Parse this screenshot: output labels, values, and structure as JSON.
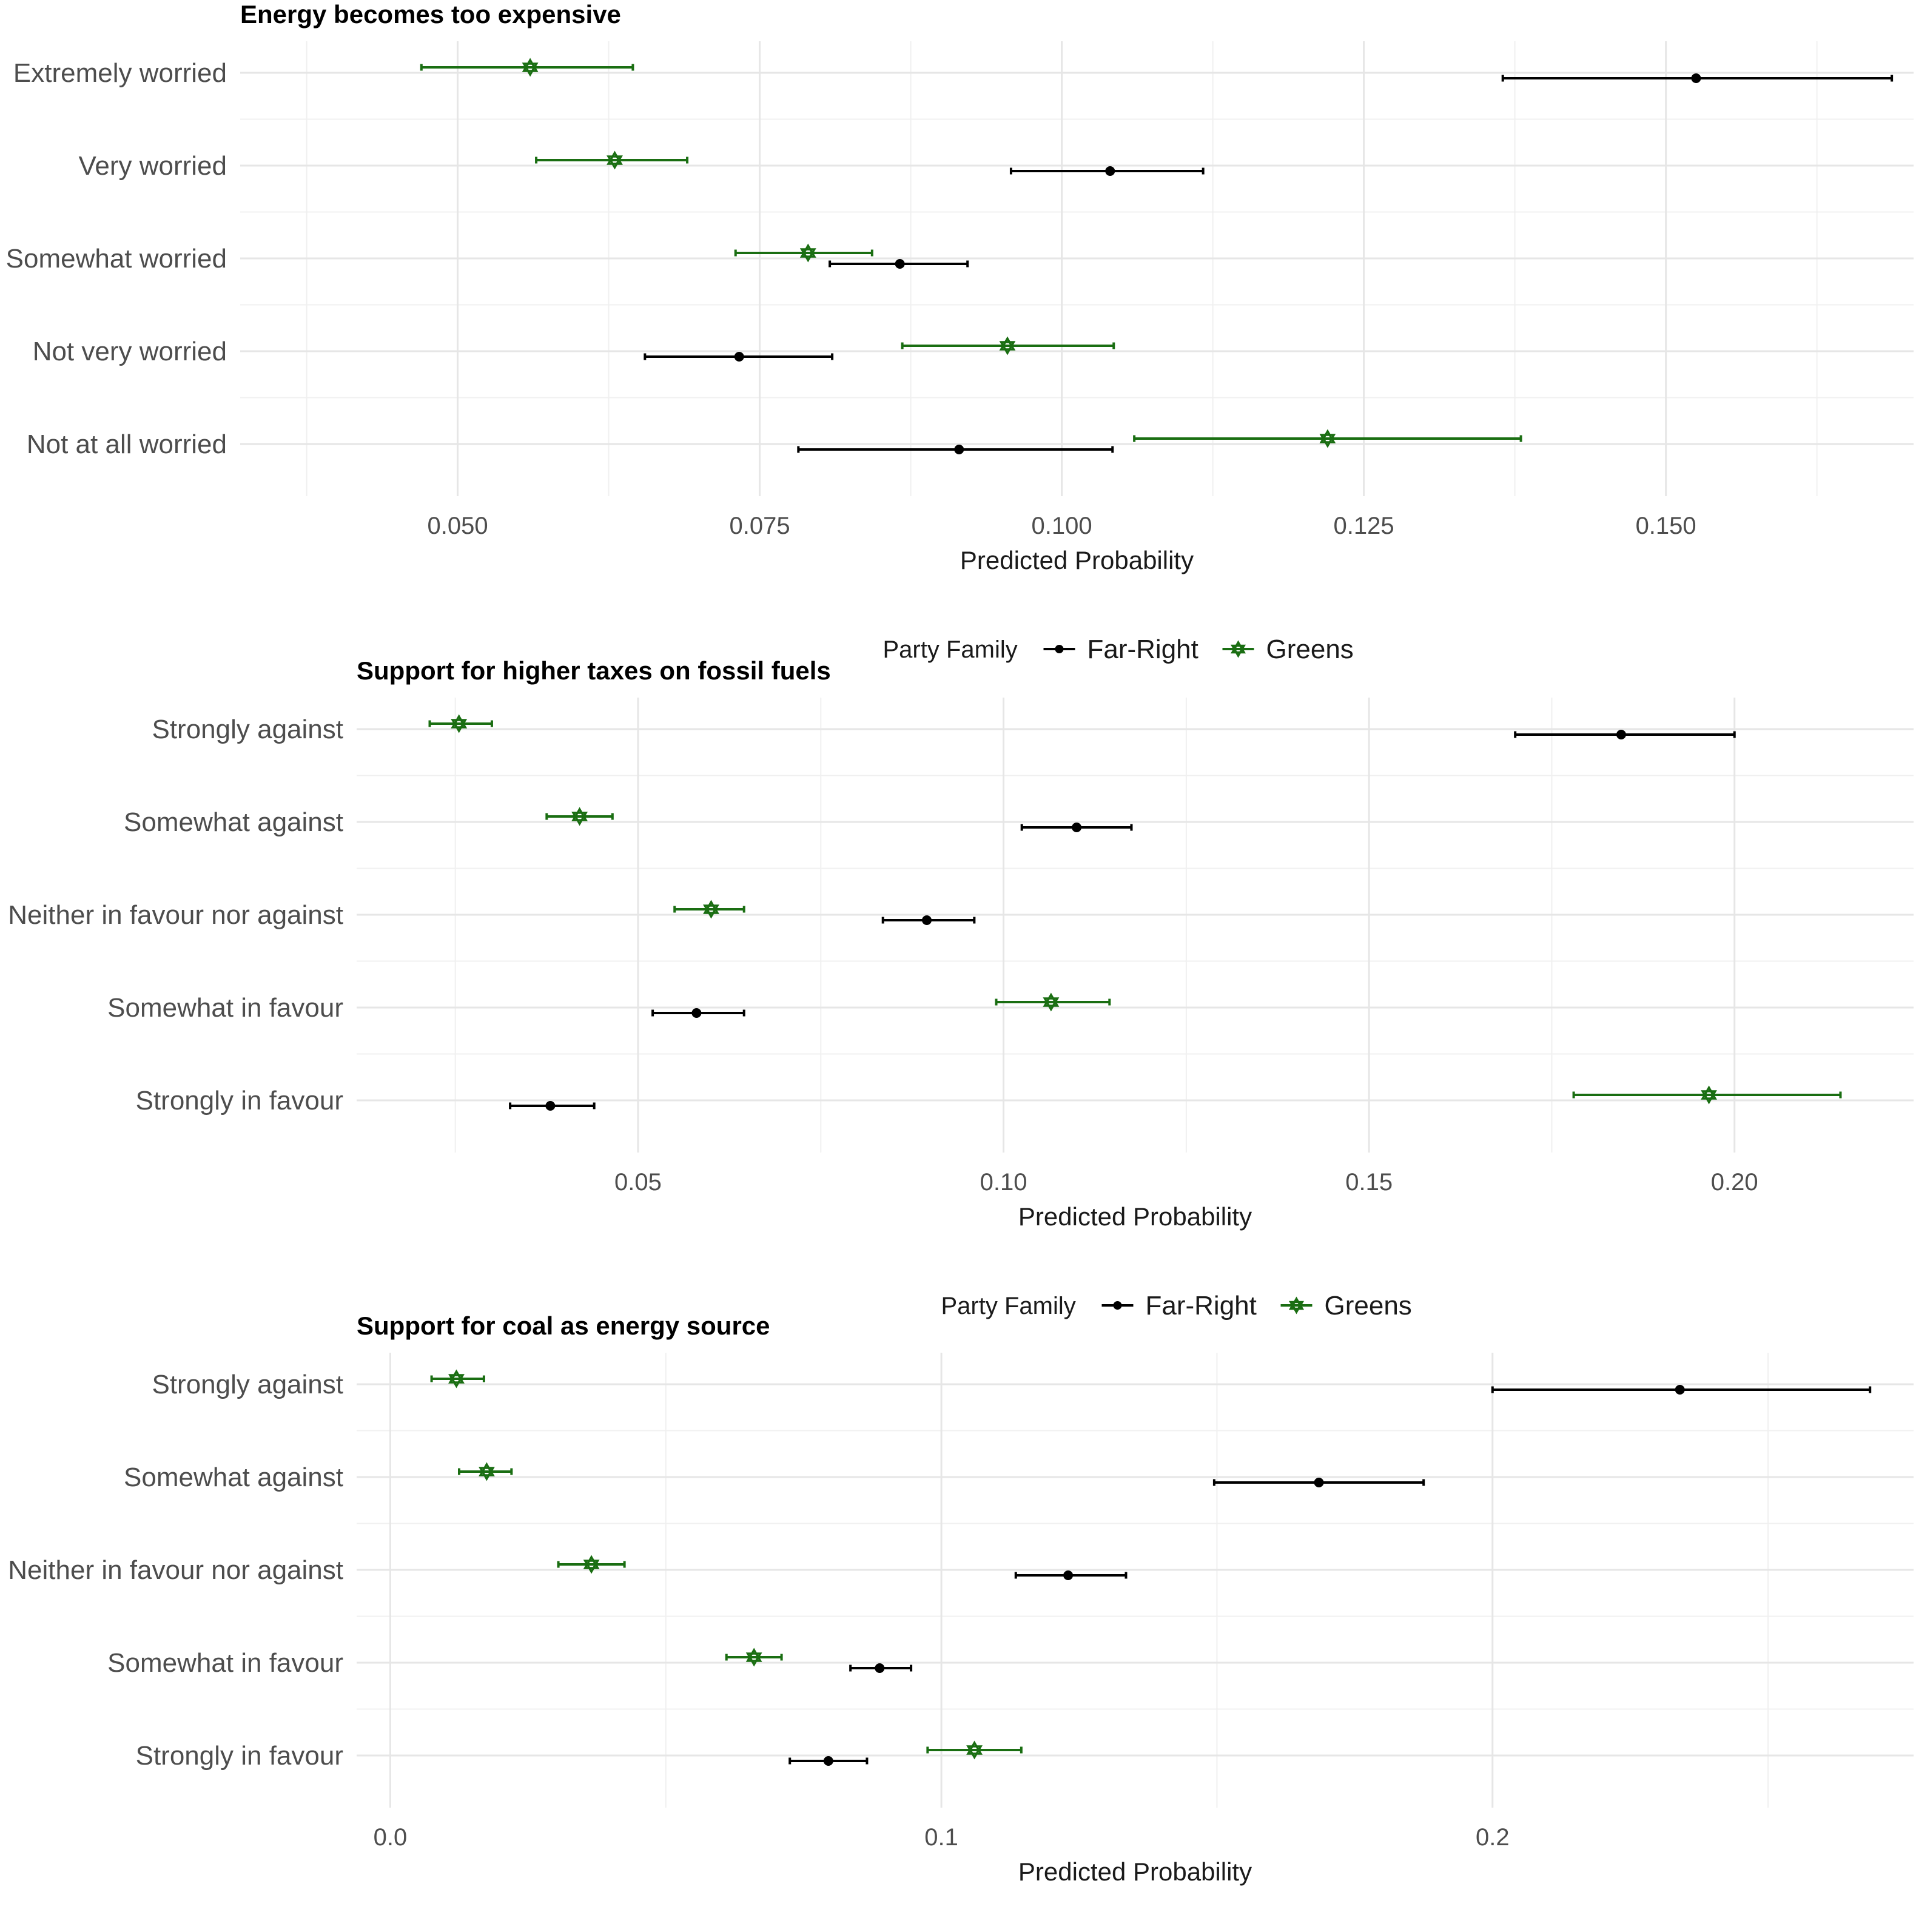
{
  "chart_data": [
    {
      "type": "errorbar",
      "title": "Energy becomes too expensive",
      "xlabel": "Predicted Probability",
      "ylabel": "",
      "xlim": [
        0.032,
        0.1705
      ],
      "xticks": [
        0.05,
        0.075,
        0.1,
        0.125,
        0.15
      ],
      "xtick_labels": [
        "0.050",
        "0.075",
        "0.100",
        "0.125",
        "0.150"
      ],
      "grid": true,
      "categories": [
        "Extremely worried",
        "Very worried",
        "Somewhat worried",
        "Not very worried",
        "Not at all worried"
      ],
      "legend": {
        "title": "Party Family",
        "entries": [
          "Far-Right",
          "Greens"
        ],
        "position": "bottom"
      },
      "series": [
        {
          "name": "Far-Right",
          "color": "#000000",
          "marker": "circle",
          "values": [
            0.1525,
            0.104,
            0.0866,
            0.0733,
            0.0915
          ],
          "lower": [
            0.1365,
            0.0958,
            0.0808,
            0.0655,
            0.0782
          ],
          "upper": [
            0.1687,
            0.1117,
            0.0922,
            0.081,
            0.1042
          ]
        },
        {
          "name": "Greens",
          "color": "#1a6e12",
          "marker": "star",
          "values": [
            0.056,
            0.063,
            0.079,
            0.0955,
            0.122
          ],
          "lower": [
            0.047,
            0.0565,
            0.073,
            0.0868,
            0.106
          ],
          "upper": [
            0.0645,
            0.069,
            0.0843,
            0.1043,
            0.138
          ]
        }
      ]
    },
    {
      "type": "errorbar",
      "title": "Support for higher taxes on fossil fuels",
      "xlabel": "Predicted Probability",
      "ylabel": "",
      "xlim": [
        0.0115,
        0.2245
      ],
      "xticks": [
        0.05,
        0.1,
        0.15,
        0.2
      ],
      "xtick_labels": [
        "0.05",
        "0.10",
        "0.15",
        "0.20"
      ],
      "grid": true,
      "categories": [
        "Strongly against",
        "Somewhat against",
        "Neither in favour nor against",
        "Somewhat in favour",
        "Strongly in favour"
      ],
      "legend": {
        "title": "Party Family",
        "entries": [
          "Far-Right",
          "Greens"
        ],
        "position": "bottom"
      },
      "series": [
        {
          "name": "Far-Right",
          "color": "#000000",
          "marker": "circle",
          "values": [
            0.1845,
            0.11,
            0.0895,
            0.058,
            0.038
          ],
          "lower": [
            0.17,
            0.1025,
            0.0835,
            0.052,
            0.0325
          ],
          "upper": [
            0.2,
            0.1175,
            0.096,
            0.0645,
            0.044
          ]
        },
        {
          "name": "Greens",
          "color": "#1a6e12",
          "marker": "star",
          "values": [
            0.0255,
            0.042,
            0.06,
            0.1065,
            0.1965
          ],
          "lower": [
            0.0215,
            0.0375,
            0.055,
            0.099,
            0.178
          ],
          "upper": [
            0.03,
            0.0465,
            0.0645,
            0.1145,
            0.2145
          ]
        }
      ]
    },
    {
      "type": "errorbar",
      "title": "Support for coal as energy source",
      "xlabel": "Predicted Probability",
      "ylabel": "",
      "xlim": [
        -0.0061,
        0.2764
      ],
      "xticks": [
        0.0,
        0.1,
        0.2
      ],
      "xtick_labels": [
        "0.0",
        "0.1",
        "0.2"
      ],
      "grid": true,
      "categories": [
        "Strongly against",
        "Somewhat against",
        "Neither in favour nor against",
        "Somewhat in favour",
        "Strongly in favour"
      ],
      "legend": {
        "title": "Party Family",
        "entries": [
          "Far-Right",
          "Greens"
        ],
        "position": "bottom"
      },
      "series": [
        {
          "name": "Far-Right",
          "color": "#000000",
          "marker": "circle",
          "values": [
            0.234,
            0.1685,
            0.123,
            0.0888,
            0.0795
          ],
          "lower": [
            0.2,
            0.1495,
            0.1135,
            0.0835,
            0.0725
          ],
          "upper": [
            0.2685,
            0.1875,
            0.1335,
            0.0945,
            0.0865
          ]
        },
        {
          "name": "Greens",
          "color": "#1a6e12",
          "marker": "star",
          "values": [
            0.012,
            0.0175,
            0.0365,
            0.066,
            0.106
          ],
          "lower": [
            0.0075,
            0.0125,
            0.0305,
            0.061,
            0.0975
          ],
          "upper": [
            0.017,
            0.022,
            0.0425,
            0.071,
            0.1145
          ]
        }
      ]
    }
  ]
}
